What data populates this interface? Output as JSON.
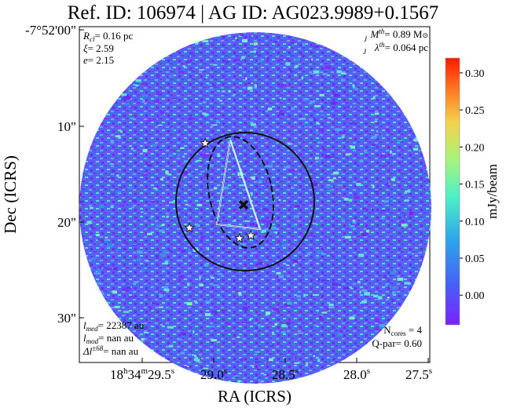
{
  "chart_data": {
    "type": "heatmap",
    "title": "Ref. ID: 106974 | AG ID: AG023.9989+0.1567",
    "xlabel": "RA (ICRS)",
    "ylabel": "Dec (ICRS)",
    "x_ticks": [
      {
        "base": "18",
        "unit1": "h",
        "mid": "34",
        "unit2": "m",
        "val": "29.5",
        "unit3": "s"
      },
      {
        "val": "29.0",
        "unit3": "s"
      },
      {
        "val": "28.5",
        "unit3": "s"
      },
      {
        "val": "28.0",
        "unit3": "s"
      },
      {
        "val": "27.5",
        "unit3": "s"
      }
    ],
    "y_ticks": [
      "-7°52'00\"",
      "10\"",
      "20\"",
      "30\""
    ],
    "colorbar": {
      "label": "mJy/beam",
      "min": -0.04,
      "max": 0.32,
      "ticks": [
        "0.00",
        "0.05",
        "0.10",
        "0.15",
        "0.20",
        "0.25",
        "0.30"
      ],
      "tick_values": [
        0.0,
        0.05,
        0.1,
        0.15,
        0.2,
        0.25,
        0.3
      ]
    },
    "cores": [
      {
        "ra": 29.06,
        "dec_arcsec": 11.8
      },
      {
        "ra": 29.17,
        "dec_arcsec": 20.6
      },
      {
        "ra": 28.74,
        "dec_arcsec": 21.4
      },
      {
        "ra": 28.82,
        "dec_arcsec": 21.7
      }
    ],
    "center_marker": {
      "ra": 28.86,
      "dec_arcsec": 19.3
    }
  },
  "annotations": {
    "top_left": [
      {
        "sym": "R",
        "sub": "cl",
        "rest": "= 0.16 pc"
      },
      {
        "sym": "ξ",
        "sub": "",
        "rest": "= 2.59"
      },
      {
        "sym": "e",
        "sub": "",
        "rest": "= 2.15"
      }
    ],
    "top_right": [
      {
        "sym": "M",
        "sup": "th",
        "sub": "J",
        "rest": "= 0.89 M",
        "tail": "⊙"
      },
      {
        "sym": "λ",
        "sup": "th",
        "sub": "J",
        "rest": "= 0.064 pc",
        "tail": ""
      }
    ],
    "bottom_left": [
      {
        "sym": "l",
        "sub": "med",
        "sup": "",
        "rest": "= 22387 au"
      },
      {
        "sym": "l",
        "sub": "mod",
        "sup": "",
        "rest": "= nan au"
      },
      {
        "sym": "Δl",
        "sub": "",
        "sup": "±68",
        "rest": "= nan au"
      }
    ],
    "bottom_right": [
      {
        "sym": "N",
        "sub": "cores",
        "rest": " = 4"
      },
      {
        "sym": "Q-par",
        "sub": "",
        "rest": "= 0.60"
      }
    ]
  },
  "colors": {
    "background_map": "#4f5bf0",
    "outline": "#111111"
  }
}
